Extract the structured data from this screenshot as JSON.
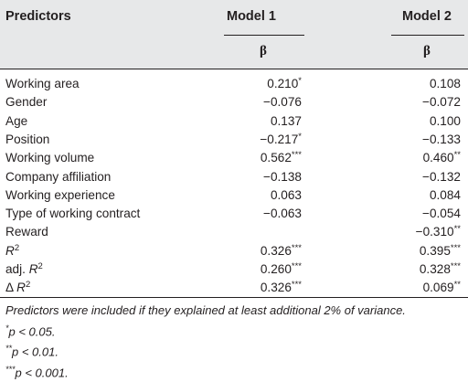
{
  "header": {
    "predictors_label": "Predictors",
    "model1_label": "Model 1",
    "model2_label": "Model 2",
    "beta_symbol": "β"
  },
  "rows": [
    {
      "predictor": "Working area",
      "m1": "0.210",
      "m1_sig": "*",
      "m2": "0.108",
      "m2_sig": ""
    },
    {
      "predictor": "Gender",
      "m1": "−0.076",
      "m1_sig": "",
      "m2": "−0.072",
      "m2_sig": ""
    },
    {
      "predictor": "Age",
      "m1": "0.137",
      "m1_sig": "",
      "m2": "0.100",
      "m2_sig": ""
    },
    {
      "predictor": "Position",
      "m1": "−0.217",
      "m1_sig": "*",
      "m2": "−0.133",
      "m2_sig": ""
    },
    {
      "predictor": "Working volume",
      "m1": "0.562",
      "m1_sig": "***",
      "m2": "0.460",
      "m2_sig": "**"
    },
    {
      "predictor": "Company affiliation",
      "m1": "−0.138",
      "m1_sig": "",
      "m2": "−0.132",
      "m2_sig": ""
    },
    {
      "predictor": "Working experience",
      "m1": "0.063",
      "m1_sig": "",
      "m2": "0.084",
      "m2_sig": ""
    },
    {
      "predictor": "Type of working contract",
      "m1": "−0.063",
      "m1_sig": "",
      "m2": "−0.054",
      "m2_sig": ""
    },
    {
      "predictor": "Reward",
      "m1": "",
      "m1_sig": "",
      "m2": "−0.310",
      "m2_sig": "**"
    },
    {
      "predictor_prefix": "",
      "predictor_italic": "R",
      "predictor_sup": "2",
      "m1": "0.326",
      "m1_sig": "***",
      "m2": "0.395",
      "m2_sig": "***"
    },
    {
      "predictor_prefix": "adj. ",
      "predictor_italic": "R",
      "predictor_sup": "2",
      "m1": "0.260",
      "m1_sig": "***",
      "m2": "0.328",
      "m2_sig": "***"
    },
    {
      "predictor_prefix": "Δ ",
      "predictor_italic": "R",
      "predictor_sup": "2",
      "m1": "0.326",
      "m1_sig": "***",
      "m2": "0.069",
      "m2_sig": "**"
    }
  ],
  "notes": {
    "line1": "Predictors were included if they explained at least additional 2% of variance.",
    "line2_sup": "*",
    "line2": "p < 0.05.",
    "line3_sup": "**",
    "line3": "p < 0.01.",
    "line4_sup": "***",
    "line4": "p < 0.001."
  }
}
